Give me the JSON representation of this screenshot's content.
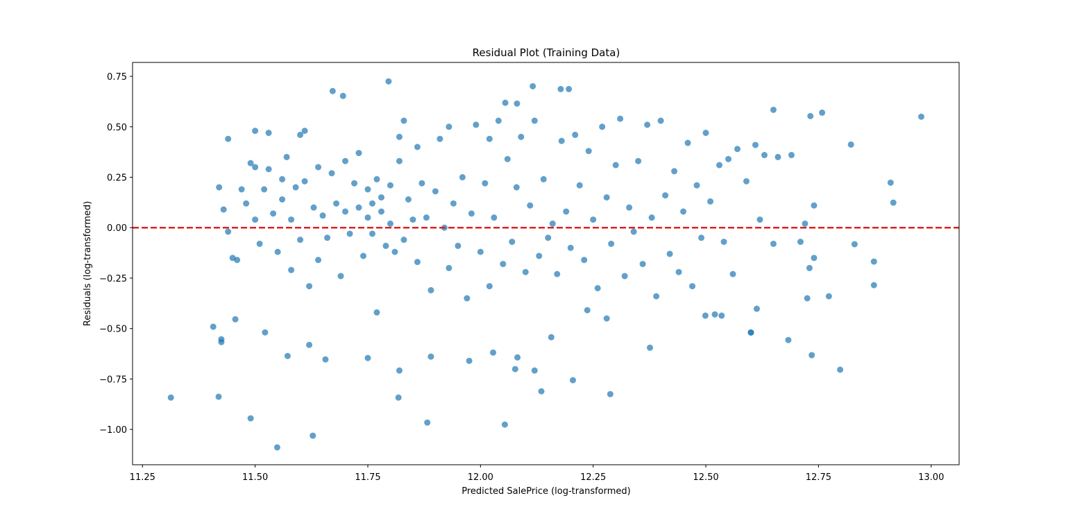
{
  "chart_data": {
    "type": "scatter",
    "title": "Residual Plot (Training Data)",
    "xlabel": "Predicted SalePrice (log-transformed)",
    "ylabel": "Residuals (log-transformed)",
    "color": "#1f77b4",
    "opacity": 0.7,
    "hline": 0,
    "hline_color": "#dd2222",
    "xlim": [
      11.228,
      13.062
    ],
    "ylim": [
      -1.175,
      0.819
    ],
    "xticks": [
      {
        "value": 11.25,
        "label": "11.25"
      },
      {
        "value": 11.5,
        "label": "11.50"
      },
      {
        "value": 11.75,
        "label": "11.75"
      },
      {
        "value": 12,
        "label": "12.00"
      },
      {
        "value": 12.25,
        "label": "12.25"
      },
      {
        "value": 12.5,
        "label": "12.50"
      },
      {
        "value": 12.75,
        "label": "12.75"
      },
      {
        "value": 13,
        "label": "13.00"
      }
    ],
    "yticks": [
      {
        "value": -1,
        "label": "−1.00"
      },
      {
        "value": -0.75,
        "label": "−0.75"
      },
      {
        "value": -0.5,
        "label": "−0.50"
      },
      {
        "value": -0.25,
        "label": "−0.25"
      },
      {
        "value": 0,
        "label": "0.00"
      },
      {
        "value": 0.25,
        "label": "0.25"
      },
      {
        "value": 0.5,
        "label": "0.50"
      },
      {
        "value": 0.75,
        "label": "0.75"
      }
    ],
    "x": [
      11.313,
      11.419,
      11.407,
      11.425,
      11.425,
      11.49,
      11.549,
      11.628,
      11.62,
      11.572,
      11.522,
      11.456,
      11.656,
      11.672,
      11.695,
      11.796,
      12.116,
      12.178,
      12.196,
      12.055,
      12.081,
      12.978,
      12.91,
      12.822,
      12.83,
      12.873,
      12.873,
      12.916,
      12.798,
      12.735,
      12.732,
      12.758,
      12.65,
      12.773,
      12.725,
      12.683,
      12.6,
      12.613,
      12.288,
      12.205,
      12.135,
      12.054,
      11.882,
      11.818,
      11.82,
      11.75,
      11.89,
      11.975,
      12.082,
      12.028,
      12.077,
      12.12,
      12.157,
      12.237,
      12.376,
      12.499,
      12.535,
      11.42,
      11.44,
      11.43,
      11.44,
      11.45,
      11.46,
      11.47,
      11.48,
      11.49,
      11.5,
      11.5,
      11.5,
      11.51,
      11.52,
      11.53,
      11.53,
      11.54,
      11.55,
      11.56,
      11.56,
      11.57,
      11.58,
      11.58,
      11.59,
      11.6,
      11.6,
      11.61,
      11.61,
      11.62,
      11.63,
      11.64,
      11.64,
      11.65,
      11.66,
      11.67,
      11.68,
      11.69,
      11.7,
      11.7,
      11.71,
      11.72,
      11.73,
      11.73,
      11.74,
      11.75,
      11.75,
      11.76,
      11.76,
      11.77,
      11.77,
      11.78,
      11.78,
      11.79,
      11.8,
      11.8,
      11.81,
      11.82,
      11.82,
      11.83,
      11.83,
      11.84,
      11.85,
      11.86,
      11.86,
      11.87,
      11.88,
      11.89,
      11.9,
      11.91,
      11.92,
      11.93,
      11.93,
      11.94,
      11.95,
      11.96,
      11.97,
      11.98,
      11.99,
      12,
      12.01,
      12.02,
      12.02,
      12.03,
      12.04,
      12.05,
      12.06,
      12.07,
      12.08,
      12.09,
      12.1,
      12.11,
      12.12,
      12.13,
      12.14,
      12.15,
      12.16,
      12.17,
      12.18,
      12.19,
      12.2,
      12.21,
      12.22,
      12.23,
      12.24,
      12.25,
      12.26,
      12.27,
      12.28,
      12.28,
      12.29,
      12.3,
      12.31,
      12.32,
      12.33,
      12.34,
      12.35,
      12.36,
      12.37,
      12.38,
      12.39,
      12.4,
      12.41,
      12.42,
      12.43,
      12.44,
      12.45,
      12.46,
      12.47,
      12.48,
      12.49,
      12.5,
      12.51,
      12.52,
      12.53,
      12.54,
      12.55,
      12.56,
      12.57,
      12.59,
      12.6,
      12.61,
      12.62,
      12.63,
      12.65,
      12.66,
      12.69,
      12.71,
      12.72,
      12.73,
      12.74,
      12.74
    ],
    "values": [
      -0.842,
      -0.838,
      -0.491,
      -0.553,
      -0.567,
      -0.945,
      -1.089,
      -1.031,
      -0.581,
      -0.636,
      -0.519,
      -0.454,
      -0.653,
      0.677,
      0.653,
      0.725,
      0.701,
      0.687,
      0.687,
      0.619,
      0.615,
      0.55,
      0.223,
      0.412,
      -0.082,
      -0.168,
      -0.285,
      0.124,
      -0.704,
      -0.632,
      0.553,
      0.57,
      0.584,
      -0.34,
      -0.35,
      -0.557,
      -0.519,
      -0.402,
      -0.825,
      -0.756,
      -0.811,
      -0.976,
      -0.966,
      -0.842,
      -0.708,
      -0.646,
      -0.639,
      -0.66,
      -0.643,
      -0.619,
      -0.701,
      -0.708,
      -0.543,
      -0.409,
      -0.595,
      -0.436,
      -0.436,
      0.2,
      0.44,
      0.09,
      -0.02,
      -0.15,
      -0.16,
      0.19,
      0.12,
      0.32,
      0.48,
      0.3,
      0.04,
      -0.08,
      0.19,
      0.47,
      0.29,
      0.07,
      -0.12,
      0.24,
      0.14,
      0.35,
      -0.21,
      0.04,
      0.2,
      0.46,
      -0.06,
      0.48,
      0.23,
      -0.29,
      0.1,
      0.3,
      -0.16,
      0.06,
      -0.05,
      0.27,
      0.12,
      -0.24,
      0.33,
      0.08,
      -0.03,
      0.22,
      0.37,
      0.1,
      -0.14,
      0.05,
      0.19,
      0.12,
      -0.03,
      0.24,
      -0.42,
      0.15,
      0.08,
      -0.09,
      0.21,
      0.02,
      -0.12,
      0.33,
      0.45,
      0.53,
      -0.06,
      0.14,
      0.04,
      0.4,
      -0.17,
      0.22,
      0.05,
      -0.31,
      0.18,
      0.44,
      0,
      0.5,
      -0.2,
      0.12,
      -0.09,
      0.25,
      -0.35,
      0.07,
      0.51,
      -0.12,
      0.22,
      0.44,
      -0.29,
      0.05,
      0.53,
      -0.18,
      0.34,
      -0.07,
      0.2,
      0.45,
      -0.22,
      0.11,
      0.53,
      -0.14,
      0.24,
      -0.05,
      0.02,
      -0.23,
      0.43,
      0.08,
      -0.1,
      0.46,
      0.21,
      -0.16,
      0.38,
      0.04,
      -0.3,
      0.5,
      0.15,
      -0.45,
      -0.08,
      0.31,
      0.54,
      -0.24,
      0.1,
      -0.02,
      0.33,
      -0.18,
      0.51,
      0.05,
      -0.34,
      0.53,
      0.16,
      -0.13,
      0.28,
      -0.22,
      0.08,
      0.42,
      -0.29,
      0.21,
      -0.05,
      0.47,
      0.13,
      -0.43,
      0.31,
      -0.07,
      0.34,
      -0.23,
      0.39,
      0.23,
      -0.52,
      0.41,
      0.04,
      0.36,
      -0.08,
      0.35,
      0.36,
      -0.07,
      0.02,
      -0.2,
      0.11,
      -0.15
    ]
  }
}
